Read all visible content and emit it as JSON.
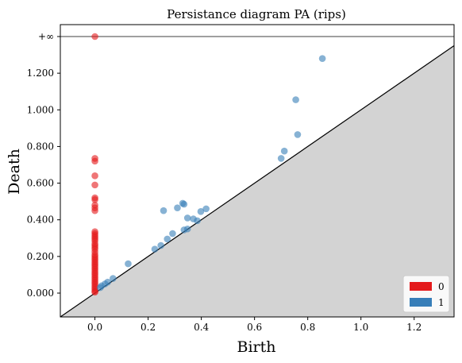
{
  "chart_data": {
    "type": "scatter",
    "title": "Persistance diagram PA (rips)",
    "xlabel": "Birth",
    "ylabel": "Death",
    "xlim": [
      -0.13,
      1.35
    ],
    "ylim": [
      -0.13,
      1.465
    ],
    "infinity_value": 1.4,
    "infinity_label": "+∞",
    "x_ticks": [
      0.0,
      0.2,
      0.4,
      0.6,
      0.8,
      1.0,
      1.2
    ],
    "x_tick_labels": [
      "0.0",
      "0.2",
      "0.4",
      "0.6",
      "0.8",
      "1.0",
      "1.2"
    ],
    "y_ticks": [
      0.0,
      0.2,
      0.4,
      0.6,
      0.8,
      1.0,
      1.2
    ],
    "y_tick_labels": [
      "0.000",
      "0.200",
      "0.400",
      "0.600",
      "0.800",
      "1.000",
      "1.200"
    ],
    "grid": false,
    "diagonal": true,
    "legend_position": "bottom-right",
    "series": [
      {
        "name": "0",
        "color": "#e41a1c",
        "points": [
          [
            0,
            1.4
          ],
          [
            0,
            0.735
          ],
          [
            0,
            0.72
          ],
          [
            0,
            0.64
          ],
          [
            0,
            0.59
          ],
          [
            0,
            0.52
          ],
          [
            0,
            0.51
          ],
          [
            0,
            0.48
          ],
          [
            0,
            0.465
          ],
          [
            0,
            0.45
          ],
          [
            0,
            0.335
          ],
          [
            0,
            0.325
          ],
          [
            0,
            0.315
          ],
          [
            0,
            0.305
          ],
          [
            0,
            0.295
          ],
          [
            0,
            0.285
          ],
          [
            0,
            0.27
          ],
          [
            0,
            0.26
          ],
          [
            0,
            0.25
          ],
          [
            0,
            0.24
          ],
          [
            0,
            0.225
          ],
          [
            0,
            0.21
          ],
          [
            0,
            0.2
          ],
          [
            0,
            0.19
          ],
          [
            0,
            0.18
          ],
          [
            0,
            0.17
          ],
          [
            0,
            0.16
          ],
          [
            0,
            0.15
          ],
          [
            0,
            0.14
          ],
          [
            0,
            0.13
          ],
          [
            0,
            0.12
          ],
          [
            0,
            0.11
          ],
          [
            0,
            0.1
          ],
          [
            0,
            0.09
          ],
          [
            0,
            0.08
          ],
          [
            0,
            0.07
          ],
          [
            0,
            0.06
          ],
          [
            0,
            0.05
          ],
          [
            0,
            0.04
          ],
          [
            0,
            0.03
          ],
          [
            0,
            0.02
          ],
          [
            0,
            0.01
          ],
          [
            0,
            0.005
          ]
        ]
      },
      {
        "name": "1",
        "color": "#377eb8",
        "points": [
          [
            0.855,
            1.28
          ],
          [
            0.755,
            1.055
          ],
          [
            0.762,
            0.865
          ],
          [
            0.712,
            0.775
          ],
          [
            0.7,
            0.735
          ],
          [
            0.33,
            0.49
          ],
          [
            0.335,
            0.485
          ],
          [
            0.31,
            0.465
          ],
          [
            0.258,
            0.45
          ],
          [
            0.418,
            0.46
          ],
          [
            0.398,
            0.445
          ],
          [
            0.348,
            0.41
          ],
          [
            0.37,
            0.405
          ],
          [
            0.385,
            0.395
          ],
          [
            0.348,
            0.35
          ],
          [
            0.335,
            0.345
          ],
          [
            0.292,
            0.325
          ],
          [
            0.272,
            0.295
          ],
          [
            0.248,
            0.26
          ],
          [
            0.225,
            0.24
          ],
          [
            0.125,
            0.16
          ],
          [
            0.068,
            0.08
          ],
          [
            0.048,
            0.06
          ],
          [
            0.038,
            0.05
          ],
          [
            0.025,
            0.04
          ],
          [
            0.02,
            0.03
          ]
        ]
      }
    ]
  }
}
